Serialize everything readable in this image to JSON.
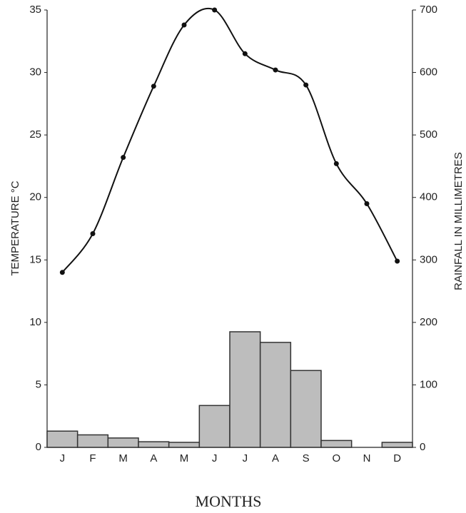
{
  "chart_data": {
    "type": "combo",
    "categories": [
      "J",
      "F",
      "M",
      "A",
      "M",
      "J",
      "J",
      "A",
      "S",
      "O",
      "N",
      "D"
    ],
    "series": [
      {
        "type": "line",
        "color": "#111111",
        "values": [
          14.0,
          17.1,
          23.2,
          28.9,
          33.8,
          35.0,
          31.5,
          30.2,
          29.0,
          22.7,
          19.5,
          14.9
        ]
      },
      {
        "type": "bar",
        "axis": "y2",
        "color": "#bdbdbd",
        "values": [
          26,
          20,
          15,
          9,
          8,
          67,
          185,
          168,
          123,
          11,
          0,
          8
        ]
      }
    ],
    "ylim": [
      0,
      35
    ],
    "yticks": [
      0,
      5,
      10,
      15,
      20,
      25,
      30,
      35
    ],
    "y2lim": [
      0,
      700
    ],
    "y2ticks": [
      0,
      100,
      200,
      300,
      400,
      500,
      600,
      700
    ],
    "ylabel": "TEMPERATURE °C",
    "y2label": "RAINFALL IN MILLIMETRES",
    "xlabel": "MONTHS"
  }
}
